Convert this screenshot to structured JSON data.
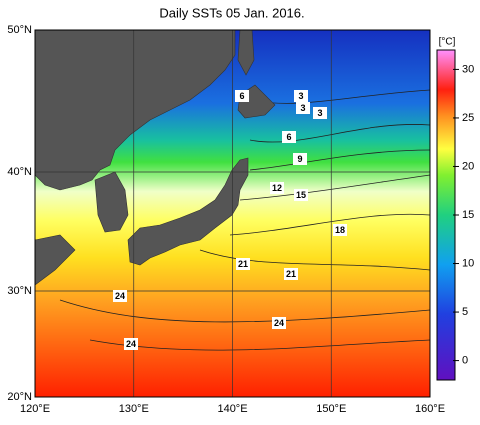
{
  "title": "Daily SSTs 05 Jan. 2016.",
  "x_axis": {
    "labels": [
      "120°E",
      "130°E",
      "140°E",
      "150°E",
      "160°E"
    ]
  },
  "y_axis": {
    "labels": [
      "50°N",
      "40°N",
      "30°N",
      "20°N"
    ]
  },
  "colorbar": {
    "unit": "[°C]",
    "lim": [
      -2,
      32
    ],
    "ticks": [
      0,
      5,
      10,
      15,
      20,
      25,
      30
    ]
  },
  "contour_labels": [
    "6",
    "3",
    "3",
    "3",
    "6",
    "9",
    "12",
    "15",
    "18",
    "21",
    "21",
    "24",
    "24",
    "24"
  ]
}
